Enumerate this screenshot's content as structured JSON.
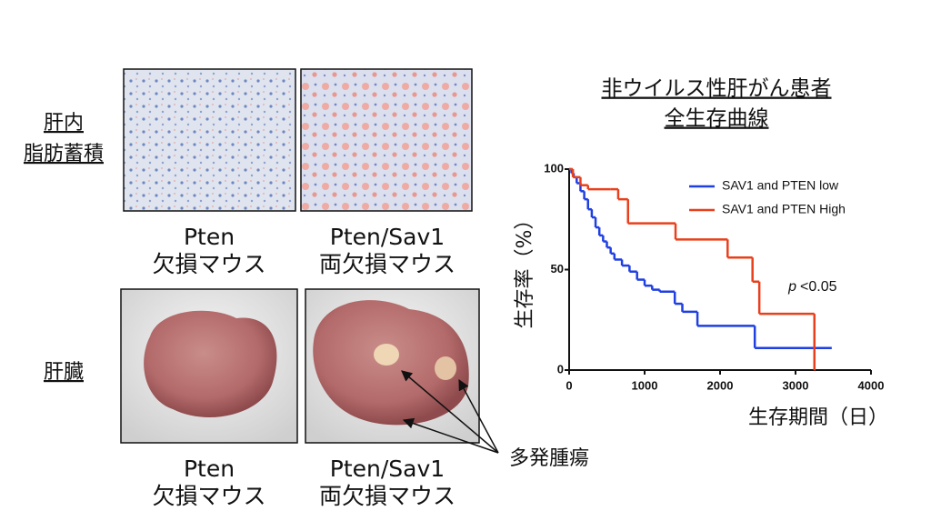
{
  "panels": {
    "row_labels": [
      [
        "肝内",
        "脂肪蓄積"
      ],
      [
        "肝臓"
      ]
    ],
    "column_labels": [
      [
        "Pten",
        "欠損マウス"
      ],
      [
        "Pten/Sav1",
        "両欠損マウス"
      ],
      [
        "Pten",
        "欠損マウス"
      ],
      [
        "Pten/Sav1",
        "両欠損マウス"
      ]
    ],
    "tumor_label": "多発腫瘍"
  },
  "chart_data": {
    "type": "step",
    "title": [
      "非ウイルス性肝がん患者",
      "全生存曲線"
    ],
    "y_label": "生存率（%）",
    "x_label": "生存期間（日）",
    "annotation_italic": "p",
    "annotation": "<0.05",
    "xlim": [
      0,
      4000
    ],
    "xticks": [
      0,
      1000,
      2000,
      3000,
      4000
    ],
    "ylim": [
      0,
      100
    ],
    "yticks": [
      0,
      50,
      100
    ],
    "legend": "upper right",
    "series": [
      {
        "name": "SAV1 and PTEN low",
        "color": "#1f3fe0",
        "x": [
          0,
          30,
          60,
          100,
          150,
          200,
          250,
          300,
          350,
          400,
          450,
          500,
          550,
          600,
          700,
          800,
          900,
          1000,
          1100,
          1200,
          1400,
          1500,
          1700,
          2460,
          3480
        ],
        "values": [
          100,
          98,
          96,
          93,
          89,
          85,
          80,
          76,
          71,
          67,
          64,
          61,
          58,
          55,
          52,
          49,
          45,
          42,
          40,
          39,
          33,
          29,
          22,
          11,
          11
        ]
      },
      {
        "name": "SAV1 and PTEN High",
        "color": "#e8401c",
        "x": [
          0,
          50,
          150,
          250,
          550,
          650,
          780,
          1410,
          2100,
          2430,
          2520,
          3250,
          3260
        ],
        "values": [
          100,
          96,
          92,
          90,
          90,
          85,
          73,
          65,
          56,
          44,
          28,
          0,
          0
        ]
      }
    ]
  }
}
